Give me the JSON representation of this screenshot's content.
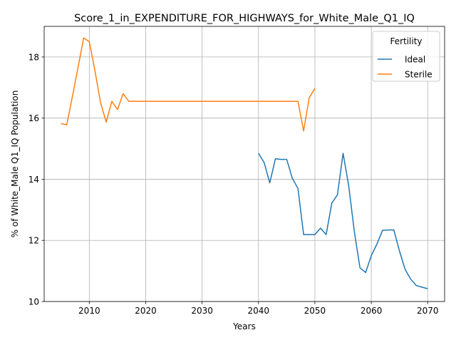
{
  "chart_data": {
    "type": "line",
    "title": "Score_1_in_EXPENDITURE_FOR_HIGHWAYS_for_White_Male_Q1_IQ",
    "xlabel": "Years",
    "ylabel": "% of White_Male Q1_IQ Population",
    "xlim": [
      2002,
      2073
    ],
    "ylim": [
      10,
      19
    ],
    "x_ticks": [
      2010,
      2020,
      2030,
      2040,
      2050,
      2060,
      2070
    ],
    "y_ticks": [
      10,
      12,
      14,
      16,
      18
    ],
    "grid": true,
    "legend": {
      "title": "Fertility",
      "position": "top-right"
    },
    "series": [
      {
        "name": "Ideal",
        "color": "#1f77b4",
        "x": [
          2040,
          2041,
          2042,
          2043,
          2044,
          2045,
          2046,
          2047,
          2048,
          2049,
          2050,
          2051,
          2052,
          2053,
          2054,
          2055,
          2056,
          2057,
          2058,
          2059,
          2060,
          2061,
          2062,
          2063,
          2064,
          2065,
          2066,
          2067,
          2068,
          2069,
          2070
        ],
        "y": [
          14.85,
          14.55,
          13.88,
          14.67,
          14.65,
          14.65,
          14.03,
          13.7,
          12.19,
          12.19,
          12.19,
          12.4,
          12.19,
          13.22,
          13.49,
          14.85,
          13.78,
          12.28,
          11.1,
          10.95,
          11.5,
          11.88,
          12.33,
          12.34,
          12.34,
          11.65,
          11.05,
          10.73,
          10.52,
          10.47,
          10.42
        ]
      },
      {
        "name": "Sterile",
        "color": "#ff7f0e",
        "x": [
          2005,
          2006,
          2007,
          2008,
          2009,
          2010,
          2011,
          2012,
          2013,
          2014,
          2015,
          2016,
          2017,
          2018,
          2019,
          2020,
          2025,
          2030,
          2035,
          2040,
          2045,
          2046,
          2047,
          2048,
          2049,
          2050
        ],
        "y": [
          15.82,
          15.78,
          16.7,
          17.65,
          18.62,
          18.5,
          17.55,
          16.5,
          15.87,
          16.55,
          16.28,
          16.8,
          16.55,
          16.55,
          16.55,
          16.55,
          16.55,
          16.55,
          16.55,
          16.55,
          16.55,
          16.55,
          16.55,
          15.58,
          16.67,
          16.97
        ]
      }
    ]
  }
}
